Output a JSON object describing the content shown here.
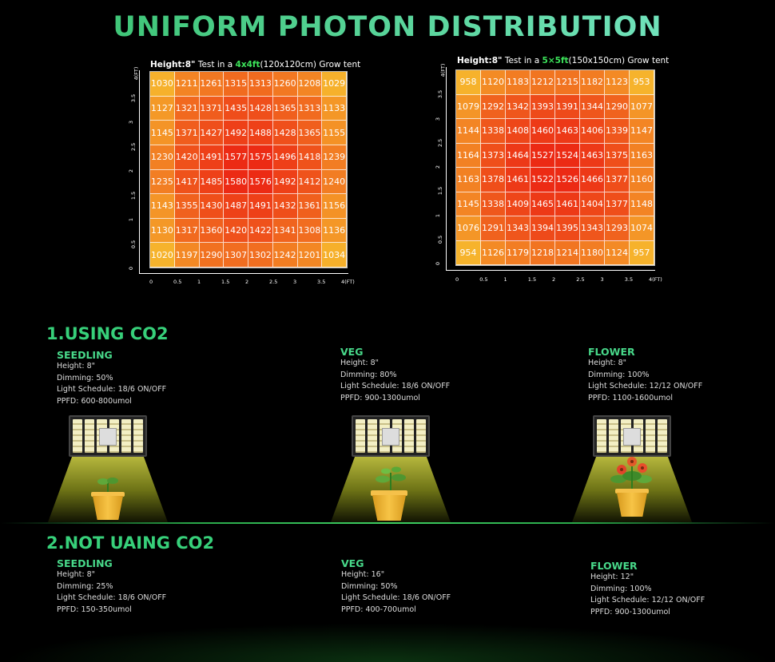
{
  "title": "UNIFORM PHOTON DISTRIBUTION",
  "grids": [
    {
      "caption_height": "Height:8\"",
      "caption_pre": " Test in a ",
      "caption_size": "4x4ft",
      "caption_post": "(120x120cm) Grow tent",
      "x_ticks": [
        "0",
        "0.5",
        "1",
        "1.5",
        "2",
        "2.5",
        "3",
        "3.5",
        "4(FT)"
      ],
      "y_ticks": [
        "0",
        "0.5",
        "1",
        "1.5",
        "2",
        "2.5",
        "3",
        "3.5",
        "4(FT)"
      ],
      "rows": [
        [
          1030,
          1211,
          1261,
          1315,
          1313,
          1260,
          1208,
          1029
        ],
        [
          1127,
          1321,
          1371,
          1435,
          1428,
          1365,
          1313,
          1133
        ],
        [
          1145,
          1371,
          1427,
          1492,
          1488,
          1428,
          1365,
          1155
        ],
        [
          1230,
          1420,
          1491,
          1577,
          1575,
          1496,
          1418,
          1239
        ],
        [
          1235,
          1417,
          1485,
          1580,
          1576,
          1492,
          1412,
          1240
        ],
        [
          1143,
          1355,
          1430,
          1487,
          1491,
          1432,
          1361,
          1156
        ],
        [
          1130,
          1317,
          1360,
          1420,
          1422,
          1341,
          1308,
          1136
        ],
        [
          1020,
          1197,
          1290,
          1307,
          1302,
          1242,
          1201,
          1034
        ]
      ]
    },
    {
      "caption_height": "Height:8\"",
      "caption_pre": " Test in a ",
      "caption_size": "5×5ft",
      "caption_post": "(150x150cm) Grow tent",
      "x_ticks": [
        "0",
        "0.5",
        "1",
        "1.5",
        "2",
        "2.5",
        "3",
        "3.5",
        "4(FT)"
      ],
      "y_ticks": [
        "0",
        "0.5",
        "1",
        "1.5",
        "2",
        "2.5",
        "3",
        "3.5",
        "4(FT)"
      ],
      "rows": [
        [
          958,
          1120,
          1183,
          1212,
          1215,
          1182,
          1123,
          953
        ],
        [
          1079,
          1292,
          1342,
          1393,
          1391,
          1344,
          1290,
          1077
        ],
        [
          1144,
          1338,
          1408,
          1460,
          1463,
          1406,
          1339,
          1147
        ],
        [
          1164,
          1373,
          1464,
          1527,
          1524,
          1463,
          1375,
          1163
        ],
        [
          1163,
          1378,
          1461,
          1522,
          1526,
          1466,
          1377,
          1160
        ],
        [
          1145,
          1338,
          1409,
          1465,
          1461,
          1404,
          1377,
          1148
        ],
        [
          1076,
          1291,
          1343,
          1394,
          1395,
          1343,
          1293,
          1074
        ],
        [
          954,
          1126,
          1179,
          1218,
          1214,
          1180,
          1124,
          957
        ]
      ]
    }
  ],
  "section1": {
    "heading": "1.USING CO2",
    "stages": [
      {
        "name": "SEEDLING",
        "height": "Height: 8\"",
        "dimming": "Dimming: 50%",
        "schedule": "Light Schedule: 18/6 ON/OFF",
        "ppfd": "PPFD: 600-800umol"
      },
      {
        "name": "VEG",
        "height": "Height: 8\"",
        "dimming": "Dimming: 80%",
        "schedule": "Light Schedule: 18/6 ON/OFF",
        "ppfd": "PPFD: 900-1300umol"
      },
      {
        "name": "FLOWER",
        "height": "Height: 8\"",
        "dimming": "Dimming: 100%",
        "schedule": "Light Schedule: 12/12 ON/OFF",
        "ppfd": "PPFD: 1100-1600umol"
      }
    ]
  },
  "section2": {
    "heading": "2.NOT UAING CO2",
    "stages": [
      {
        "name": "SEEDLING",
        "height": "Height: 8\"",
        "dimming": "Dimming: 25%",
        "schedule": "Light Schedule: 18/6 ON/OFF",
        "ppfd": "PPFD: 150-350umol"
      },
      {
        "name": "VEG",
        "height": "Height: 16\"",
        "dimming": "Dimming: 50%",
        "schedule": "Light Schedule: 18/6 ON/OFF",
        "ppfd": "PPFD: 400-700umol"
      },
      {
        "name": "FLOWER",
        "height": "Height: 12\"",
        "dimming": "Dimming: 100%",
        "schedule": "Light Schedule: 12/12 ON/OFF",
        "ppfd": "PPFD: 900-1300umol"
      }
    ]
  },
  "colors": {
    "accent_green": "#37d07a",
    "highlight_green": "#3ce35a",
    "heat_low": "#f6b32c",
    "heat_high": "#ec2a14"
  }
}
